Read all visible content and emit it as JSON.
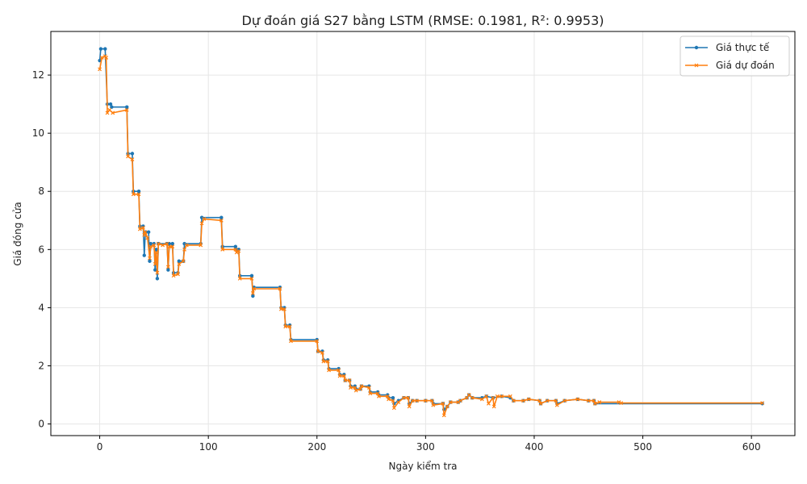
{
  "chart_data": {
    "type": "line",
    "title": "Dự đoán giá S27 bằng LSTM (RMSE: 0.1981, R²: 0.9953)",
    "xlabel": "Ngày kiểm tra",
    "ylabel": "Giá đóng cửa",
    "xlim": [
      -45,
      640
    ],
    "ylim": [
      -0.4,
      13.5
    ],
    "xticks": [
      0,
      100,
      200,
      300,
      400,
      500,
      600
    ],
    "yticks": [
      0,
      2,
      4,
      6,
      8,
      10,
      12
    ],
    "grid": true,
    "legend_position": "top-right",
    "series": [
      {
        "name": "Giá thực tế",
        "color": "#1f77b4",
        "marker": "circle",
        "points": [
          [
            0,
            12.5
          ],
          [
            1,
            12.9
          ],
          [
            5,
            12.9
          ],
          [
            7,
            11.0
          ],
          [
            10,
            11.0
          ],
          [
            11,
            10.9
          ],
          [
            25,
            10.9
          ],
          [
            26,
            9.3
          ],
          [
            30,
            9.3
          ],
          [
            31,
            8.0
          ],
          [
            36,
            8.0
          ],
          [
            37,
            6.8
          ],
          [
            40,
            6.8
          ],
          [
            41,
            5.8
          ],
          [
            42,
            6.6
          ],
          [
            45,
            6.6
          ],
          [
            46,
            5.6
          ],
          [
            47,
            6.2
          ],
          [
            50,
            6.2
          ],
          [
            51,
            5.3
          ],
          [
            52,
            6.0
          ],
          [
            53,
            5.0
          ],
          [
            54,
            6.2
          ],
          [
            62,
            6.2
          ],
          [
            63,
            5.3
          ],
          [
            64,
            6.2
          ],
          [
            67,
            6.2
          ],
          [
            68,
            5.2
          ],
          [
            72,
            5.2
          ],
          [
            73,
            5.6
          ],
          [
            77,
            5.6
          ],
          [
            78,
            6.2
          ],
          [
            93,
            6.2
          ],
          [
            94,
            7.1
          ],
          [
            112,
            7.1
          ],
          [
            113,
            6.1
          ],
          [
            125,
            6.1
          ],
          [
            126,
            6.0
          ],
          [
            128,
            6.0
          ],
          [
            129,
            5.1
          ],
          [
            140,
            5.1
          ],
          [
            141,
            4.4
          ],
          [
            142,
            4.7
          ],
          [
            166,
            4.7
          ],
          [
            167,
            4.0
          ],
          [
            170,
            4.0
          ],
          [
            171,
            3.4
          ],
          [
            175,
            3.4
          ],
          [
            176,
            2.9
          ],
          [
            200,
            2.9
          ],
          [
            201,
            2.5
          ],
          [
            205,
            2.5
          ],
          [
            206,
            2.2
          ],
          [
            210,
            2.2
          ],
          [
            211,
            1.9
          ],
          [
            220,
            1.9
          ],
          [
            221,
            1.7
          ],
          [
            225,
            1.7
          ],
          [
            226,
            1.5
          ],
          [
            230,
            1.5
          ],
          [
            231,
            1.3
          ],
          [
            235,
            1.3
          ],
          [
            236,
            1.2
          ],
          [
            240,
            1.2
          ],
          [
            241,
            1.3
          ],
          [
            248,
            1.3
          ],
          [
            249,
            1.1
          ],
          [
            256,
            1.1
          ],
          [
            257,
            1.0
          ],
          [
            265,
            1.0
          ],
          [
            266,
            0.9
          ],
          [
            270,
            0.9
          ],
          [
            271,
            0.7
          ],
          [
            275,
            0.8
          ],
          [
            280,
            0.9
          ],
          [
            284,
            0.9
          ],
          [
            285,
            0.7
          ],
          [
            288,
            0.8
          ],
          [
            292,
            0.8
          ],
          [
            300,
            0.8
          ],
          [
            306,
            0.8
          ],
          [
            307,
            0.7
          ],
          [
            316,
            0.7
          ],
          [
            317,
            0.5
          ],
          [
            320,
            0.6
          ],
          [
            323,
            0.75
          ],
          [
            330,
            0.75
          ],
          [
            332,
            0.8
          ],
          [
            338,
            0.9
          ],
          [
            340,
            1.0
          ],
          [
            343,
            0.9
          ],
          [
            352,
            0.9
          ],
          [
            356,
            0.95
          ],
          [
            362,
            0.9
          ],
          [
            370,
            0.95
          ],
          [
            378,
            0.9
          ],
          [
            381,
            0.8
          ],
          [
            390,
            0.8
          ],
          [
            395,
            0.85
          ],
          [
            405,
            0.8
          ],
          [
            406,
            0.7
          ],
          [
            412,
            0.8
          ],
          [
            420,
            0.8
          ],
          [
            421,
            0.7
          ],
          [
            428,
            0.8
          ],
          [
            440,
            0.85
          ],
          [
            450,
            0.8
          ],
          [
            455,
            0.8
          ],
          [
            456,
            0.7
          ],
          [
            610,
            0.7
          ]
        ]
      },
      {
        "name": "Giá dự đoán",
        "color": "#ff7f0e",
        "marker": "x",
        "points": [
          [
            0,
            12.2
          ],
          [
            2,
            12.6
          ],
          [
            5,
            12.65
          ],
          [
            6,
            12.6
          ],
          [
            7,
            10.7
          ],
          [
            9,
            10.8
          ],
          [
            12,
            10.7
          ],
          [
            25,
            10.8
          ],
          [
            26,
            9.2
          ],
          [
            30,
            9.1
          ],
          [
            31,
            7.9
          ],
          [
            36,
            7.9
          ],
          [
            37,
            6.7
          ],
          [
            40,
            6.75
          ],
          [
            41,
            6.5
          ],
          [
            42,
            6.6
          ],
          [
            44,
            6.4
          ],
          [
            46,
            5.7
          ],
          [
            47,
            6.1
          ],
          [
            50,
            6.15
          ],
          [
            51,
            5.5
          ],
          [
            52,
            5.9
          ],
          [
            53,
            5.2
          ],
          [
            54,
            6.2
          ],
          [
            58,
            6.15
          ],
          [
            62,
            6.2
          ],
          [
            63,
            5.4
          ],
          [
            64,
            6.1
          ],
          [
            67,
            6.1
          ],
          [
            68,
            5.1
          ],
          [
            72,
            5.15
          ],
          [
            73,
            5.5
          ],
          [
            77,
            5.6
          ],
          [
            78,
            6.0
          ],
          [
            80,
            6.15
          ],
          [
            93,
            6.15
          ],
          [
            94,
            6.9
          ],
          [
            96,
            7.05
          ],
          [
            112,
            7.0
          ],
          [
            113,
            6.0
          ],
          [
            125,
            6.0
          ],
          [
            126,
            5.9
          ],
          [
            128,
            5.95
          ],
          [
            129,
            5.0
          ],
          [
            140,
            5.0
          ],
          [
            141,
            4.5
          ],
          [
            142,
            4.65
          ],
          [
            166,
            4.65
          ],
          [
            167,
            3.95
          ],
          [
            170,
            3.95
          ],
          [
            171,
            3.35
          ],
          [
            175,
            3.35
          ],
          [
            176,
            2.85
          ],
          [
            200,
            2.85
          ],
          [
            201,
            2.5
          ],
          [
            205,
            2.45
          ],
          [
            206,
            2.15
          ],
          [
            210,
            2.15
          ],
          [
            211,
            1.85
          ],
          [
            220,
            1.85
          ],
          [
            221,
            1.65
          ],
          [
            225,
            1.65
          ],
          [
            226,
            1.5
          ],
          [
            230,
            1.5
          ],
          [
            231,
            1.25
          ],
          [
            235,
            1.25
          ],
          [
            236,
            1.15
          ],
          [
            240,
            1.2
          ],
          [
            241,
            1.3
          ],
          [
            248,
            1.25
          ],
          [
            249,
            1.05
          ],
          [
            256,
            1.05
          ],
          [
            257,
            0.95
          ],
          [
            265,
            0.95
          ],
          [
            266,
            0.85
          ],
          [
            270,
            0.8
          ],
          [
            271,
            0.55
          ],
          [
            275,
            0.75
          ],
          [
            280,
            0.9
          ],
          [
            284,
            0.9
          ],
          [
            285,
            0.6
          ],
          [
            288,
            0.8
          ],
          [
            292,
            0.8
          ],
          [
            300,
            0.8
          ],
          [
            306,
            0.8
          ],
          [
            307,
            0.65
          ],
          [
            316,
            0.7
          ],
          [
            317,
            0.3
          ],
          [
            320,
            0.6
          ],
          [
            323,
            0.75
          ],
          [
            330,
            0.75
          ],
          [
            332,
            0.8
          ],
          [
            338,
            0.9
          ],
          [
            340,
            1.0
          ],
          [
            343,
            0.9
          ],
          [
            352,
            0.85
          ],
          [
            356,
            0.95
          ],
          [
            358,
            0.7
          ],
          [
            362,
            0.9
          ],
          [
            363,
            0.6
          ],
          [
            366,
            0.95
          ],
          [
            370,
            0.95
          ],
          [
            378,
            0.95
          ],
          [
            381,
            0.8
          ],
          [
            390,
            0.8
          ],
          [
            395,
            0.85
          ],
          [
            405,
            0.8
          ],
          [
            406,
            0.7
          ],
          [
            412,
            0.8
          ],
          [
            420,
            0.8
          ],
          [
            421,
            0.65
          ],
          [
            428,
            0.8
          ],
          [
            440,
            0.85
          ],
          [
            450,
            0.8
          ],
          [
            455,
            0.8
          ],
          [
            456,
            0.7
          ],
          [
            460,
            0.75
          ],
          [
            478,
            0.75
          ],
          [
            480,
            0.72
          ],
          [
            610,
            0.72
          ]
        ]
      }
    ]
  }
}
